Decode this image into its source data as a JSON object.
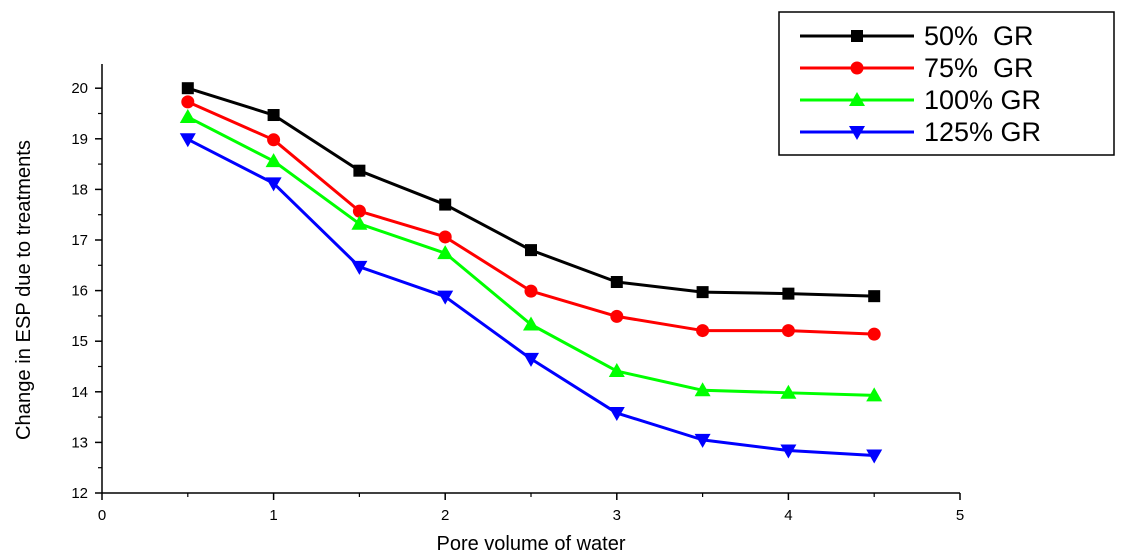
{
  "chart_data": {
    "type": "line",
    "title": "",
    "xlabel": "Pore volume of water",
    "ylabel": "Change in ESP due to treatments",
    "xlim": [
      0,
      5
    ],
    "ylim": [
      12,
      20.5
    ],
    "x_ticks": [
      "0",
      "1",
      "2",
      "3",
      "4",
      "5"
    ],
    "y_ticks": [
      "12",
      "13",
      "14",
      "15",
      "16",
      "17",
      "18",
      "19",
      "20"
    ],
    "grid": false,
    "legend_position": "top-right",
    "x": [
      0.5,
      1,
      1.5,
      2,
      2.5,
      3,
      3.5,
      4,
      4.5
    ],
    "series": [
      {
        "name": "50%  GR",
        "color": "#000000",
        "marker": "square",
        "values": [
          20.0,
          19.47,
          18.37,
          17.7,
          16.8,
          16.17,
          15.97,
          15.94,
          15.89
        ]
      },
      {
        "name": "75%  GR",
        "color": "#ff0000",
        "marker": "circle",
        "values": [
          19.73,
          18.98,
          17.57,
          17.06,
          15.99,
          15.49,
          15.21,
          15.21,
          15.14
        ]
      },
      {
        "name": "100% GR",
        "color": "#00ff00",
        "marker": "triangle-up",
        "values": [
          19.43,
          18.56,
          17.32,
          16.74,
          15.33,
          14.41,
          14.03,
          13.98,
          13.93
        ]
      },
      {
        "name": "125% GR",
        "color": "#0000ff",
        "marker": "triangle-down",
        "values": [
          18.99,
          18.12,
          16.47,
          15.88,
          14.65,
          13.58,
          13.05,
          12.84,
          12.74
        ]
      }
    ]
  }
}
